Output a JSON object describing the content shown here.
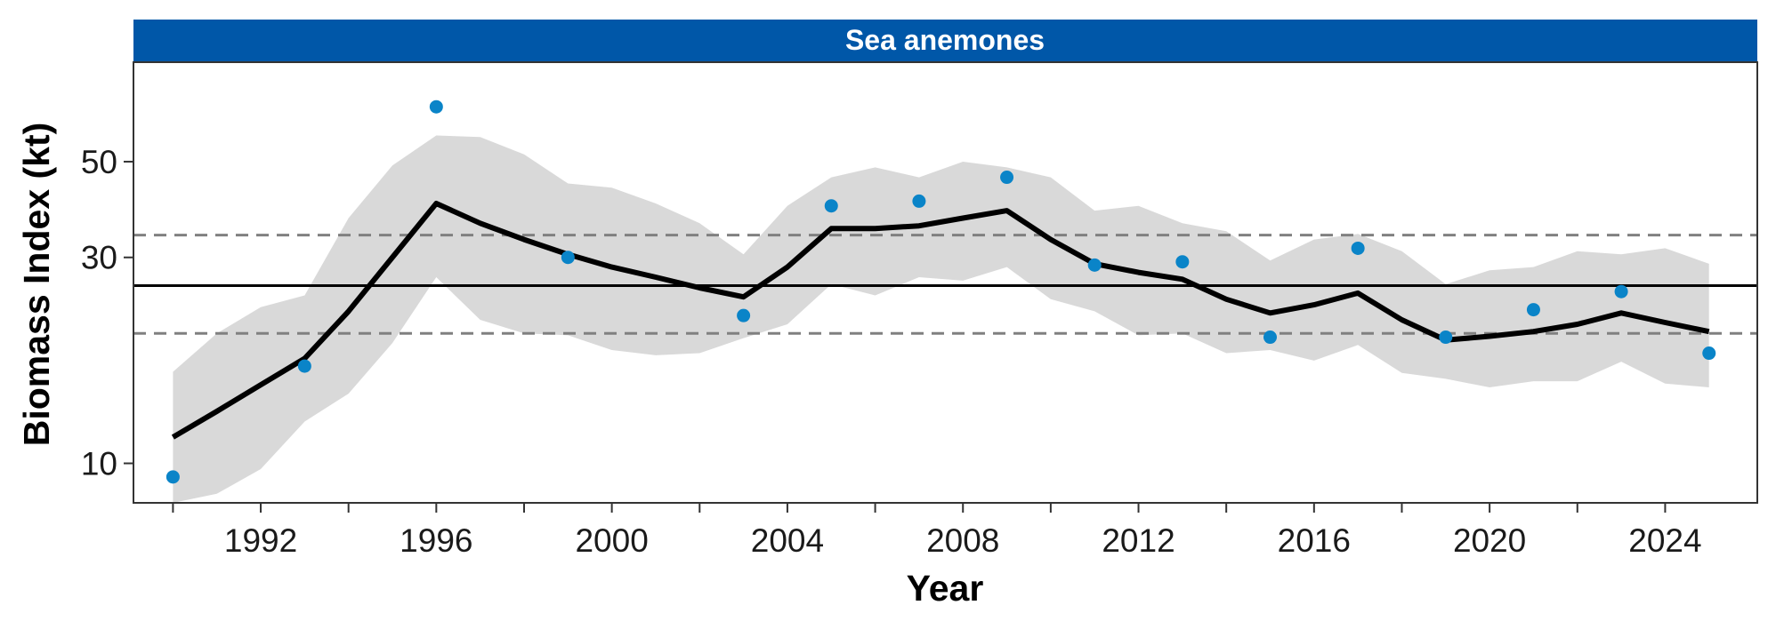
{
  "chart_data": {
    "type": "line",
    "title": "Sea anemones",
    "xlabel": "Year",
    "ylabel": "Biomass Index (kt)",
    "y_scale": "log",
    "xlim": [
      1989.1,
      2026.1
    ],
    "ylim": [
      8.1,
      85
    ],
    "x_ticks": [
      {
        "value": 1992,
        "label": "1992"
      },
      {
        "value": 1996,
        "label": "1996"
      },
      {
        "value": 2000,
        "label": "2000"
      },
      {
        "value": 2004,
        "label": "2004"
      },
      {
        "value": 2008,
        "label": "2008"
      },
      {
        "value": 2012,
        "label": "2012"
      },
      {
        "value": 2016,
        "label": "2016"
      },
      {
        "value": 2020,
        "label": "2020"
      },
      {
        "value": 2024,
        "label": "2024"
      }
    ],
    "x_minor_ticks": [
      1990,
      1994,
      1998,
      2002,
      2006,
      2010,
      2014,
      2018,
      2022
    ],
    "y_ticks": [
      {
        "value": 10,
        "label": "10"
      },
      {
        "value": 30,
        "label": "30"
      },
      {
        "value": 50,
        "label": "50"
      }
    ],
    "grid": false,
    "colors": {
      "strip": "#0057a8",
      "points": "#0a84c8",
      "line": "#000000",
      "ribbon": "#d9d9d9",
      "reference": "#000000",
      "bounds": "#808080"
    },
    "reference_line": 25.8,
    "bound_lines": [
      20.0,
      33.8
    ],
    "trend": {
      "x": [
        1990,
        1991,
        1992,
        1993,
        1994,
        1995,
        1996,
        1997,
        1998,
        1999,
        2000,
        2001,
        2002,
        2003,
        2004,
        2005,
        2006,
        2007,
        2008,
        2009,
        2010,
        2011,
        2012,
        2013,
        2014,
        2015,
        2016,
        2017,
        2018,
        2019,
        2020,
        2021,
        2022,
        2023,
        2024,
        2025
      ],
      "y": [
        11.5,
        13.2,
        15.2,
        17.5,
        22.5,
        30.0,
        40.0,
        36.0,
        33.0,
        30.5,
        28.5,
        27.0,
        25.5,
        24.3,
        28.5,
        35.0,
        35.0,
        35.5,
        37.0,
        38.5,
        33.0,
        29.0,
        27.7,
        26.7,
        24.0,
        22.3,
        23.3,
        24.8,
        21.5,
        19.3,
        19.7,
        20.2,
        21.0,
        22.3,
        21.2,
        20.2
      ]
    },
    "ribbon": {
      "x": [
        1990,
        1991,
        1992,
        1993,
        1994,
        1995,
        1996,
        1997,
        1998,
        1999,
        2000,
        2001,
        2002,
        2003,
        2004,
        2005,
        2006,
        2007,
        2008,
        2009,
        2010,
        2011,
        2012,
        2013,
        2014,
        2015,
        2016,
        2017,
        2018,
        2019,
        2020,
        2021,
        2022,
        2023,
        2024,
        2025
      ],
      "lower": [
        8.1,
        8.5,
        9.7,
        12.5,
        14.5,
        19.0,
        27.0,
        21.5,
        20.0,
        19.8,
        18.3,
        17.8,
        18.0,
        19.5,
        21.0,
        26.0,
        24.5,
        27.0,
        26.5,
        28.5,
        24.0,
        22.5,
        19.8,
        20.0,
        18.0,
        18.3,
        17.3,
        18.8,
        16.2,
        15.7,
        15.0,
        15.5,
        15.5,
        17.2,
        15.3,
        15.0
      ],
      "upper": [
        16.3,
        20.0,
        23.0,
        24.5,
        37.0,
        49.0,
        57.5,
        57.0,
        52.0,
        44.5,
        43.5,
        40.0,
        36.0,
        30.5,
        39.5,
        46.0,
        48.5,
        46.0,
        50.0,
        48.5,
        46.0,
        38.5,
        39.5,
        36.0,
        34.5,
        29.5,
        33.0,
        34.0,
        31.0,
        26.0,
        28.0,
        28.5,
        31.0,
        30.5,
        31.5,
        29.0
      ]
    },
    "points": {
      "x": [
        1990,
        1993,
        1996,
        1999,
        2003,
        2005,
        2007,
        2009,
        2011,
        2013,
        2015,
        2017,
        2019,
        2021,
        2023,
        2025
      ],
      "y": [
        9.3,
        16.8,
        67.0,
        30.0,
        22.0,
        39.5,
        40.5,
        46.0,
        28.8,
        29.3,
        19.6,
        31.5,
        19.6,
        22.7,
        25.0,
        18.0
      ]
    }
  }
}
